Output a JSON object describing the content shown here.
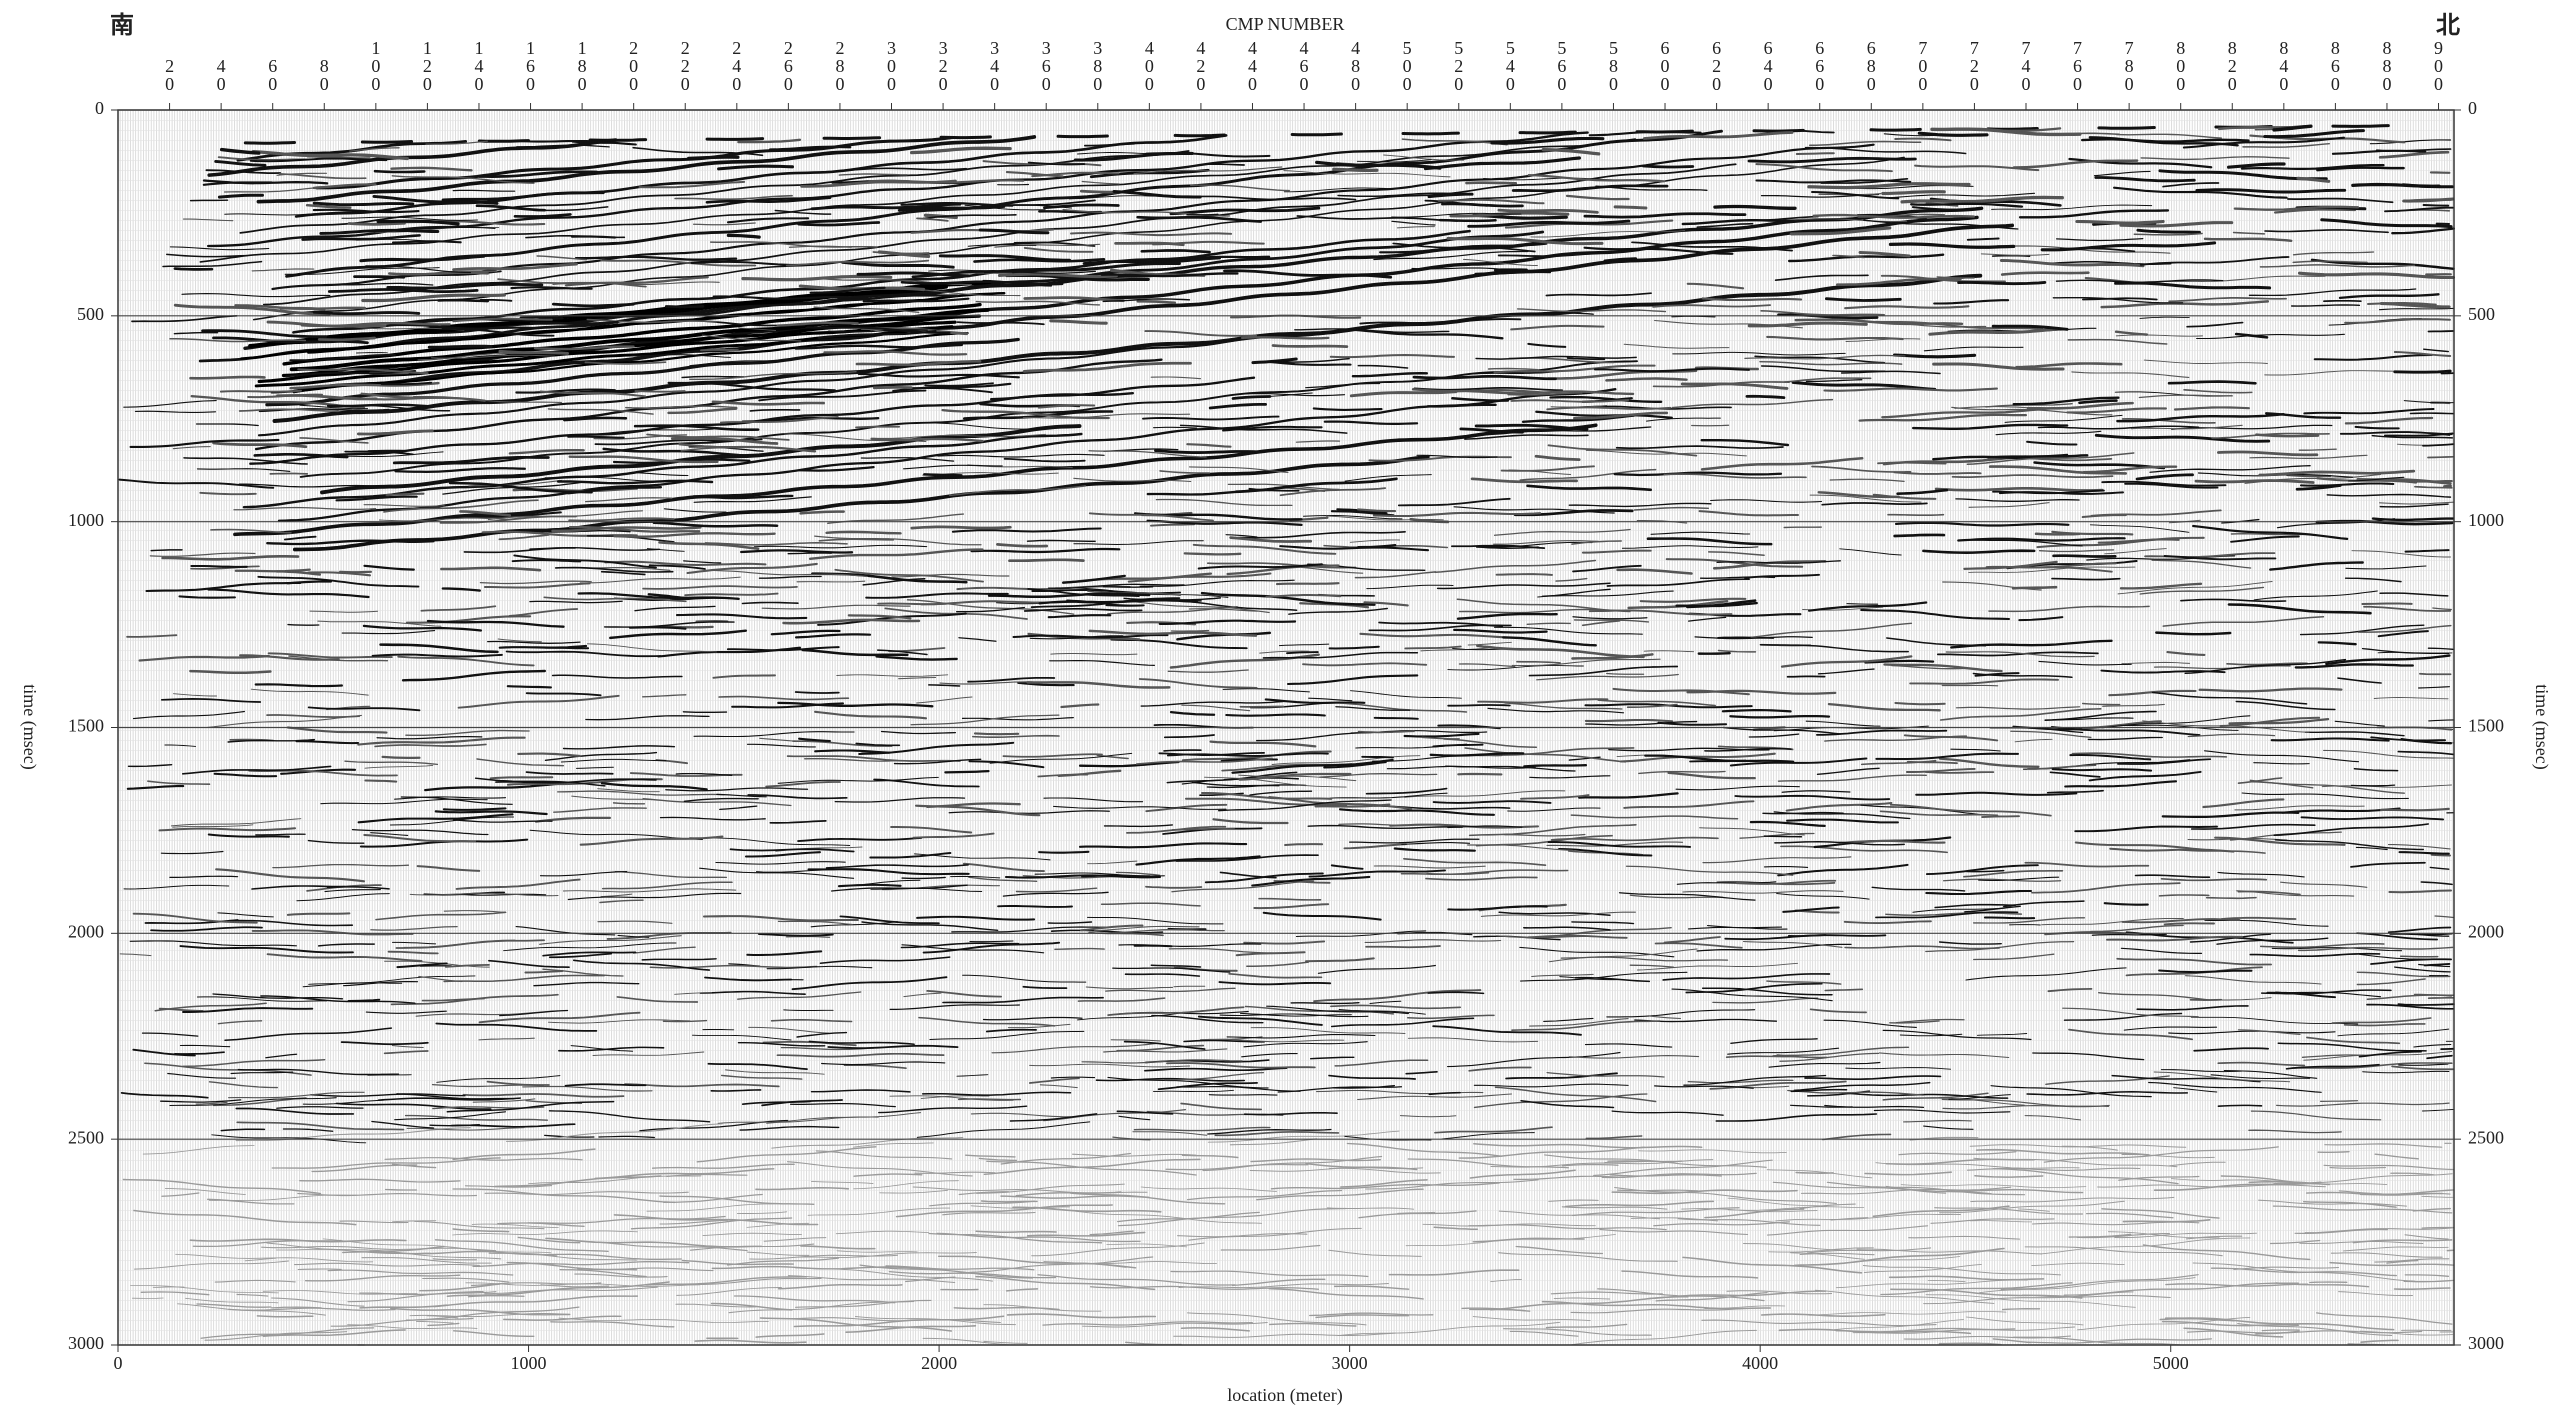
{
  "chart_data": {
    "type": "seismic-section",
    "title": "CMP NUMBER",
    "left_annotation": "南",
    "right_annotation": "北",
    "xlabel": "location (meter)",
    "ylabel": "time (msec)",
    "xlim": [
      0,
      5690
    ],
    "xticks": [
      0,
      1000,
      2000,
      3000,
      4000,
      5000
    ],
    "ylim": [
      0,
      3000
    ],
    "y_inverted": true,
    "yticks": [
      0,
      500,
      1000,
      1500,
      2000,
      2500,
      3000
    ],
    "x2lim": [
      0,
      906
    ],
    "x2ticks": [
      20,
      40,
      60,
      80,
      100,
      120,
      140,
      160,
      180,
      200,
      220,
      240,
      260,
      280,
      300,
      320,
      340,
      360,
      380,
      400,
      420,
      440,
      460,
      480,
      500,
      520,
      540,
      560,
      580,
      600,
      620,
      640,
      660,
      680,
      700,
      720,
      740,
      760,
      780,
      800,
      820,
      840,
      860,
      880,
      900
    ],
    "grid": true
  }
}
